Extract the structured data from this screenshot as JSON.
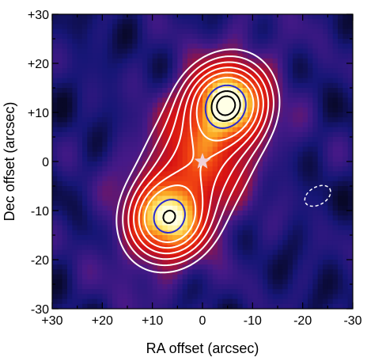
{
  "chart_data": {
    "type": "heatmap",
    "title": "",
    "xlabel": "RA offset (arcsec)",
    "ylabel": "Dec offset (arcsec)",
    "xlim": [
      30,
      -30
    ],
    "ylim": [
      -30,
      30
    ],
    "x_reversed": true,
    "xticks": [
      30,
      20,
      10,
      0,
      -10,
      -20,
      -30
    ],
    "yticks": [
      -30,
      -20,
      -10,
      0,
      10,
      20,
      30
    ],
    "xtick_labels": [
      "+30",
      "+20",
      "+10",
      "0",
      "-10",
      "-20",
      "-30"
    ],
    "ytick_labels": [
      "-30",
      "-20",
      "-10",
      "0",
      "+10",
      "+20",
      "+30"
    ],
    "grid": false,
    "colormap": "blue-purple-red-yellow-white",
    "background_color": "#16167a",
    "sources": [
      {
        "x": -5,
        "y": 12,
        "peak": 1.0
      },
      {
        "x": 7,
        "y": -12,
        "peak": 0.92
      }
    ],
    "star_marker": {
      "x": 0,
      "y": 0,
      "color": "#f0d0d8"
    },
    "contours": {
      "white_levels": [
        0.18,
        0.25,
        0.33,
        0.42,
        0.52,
        0.63
      ],
      "blue_level": 0.8,
      "black_levels": [
        0.91,
        0.985
      ],
      "colors": {
        "white": "#ffffff",
        "blue": "#2a2ad0",
        "black": "#000000"
      }
    },
    "dashed_ellipse": {
      "x": -23,
      "y": -7,
      "rx": 2.8,
      "ry": 1.8,
      "angle_deg": 30,
      "color": "#ffffff"
    }
  }
}
